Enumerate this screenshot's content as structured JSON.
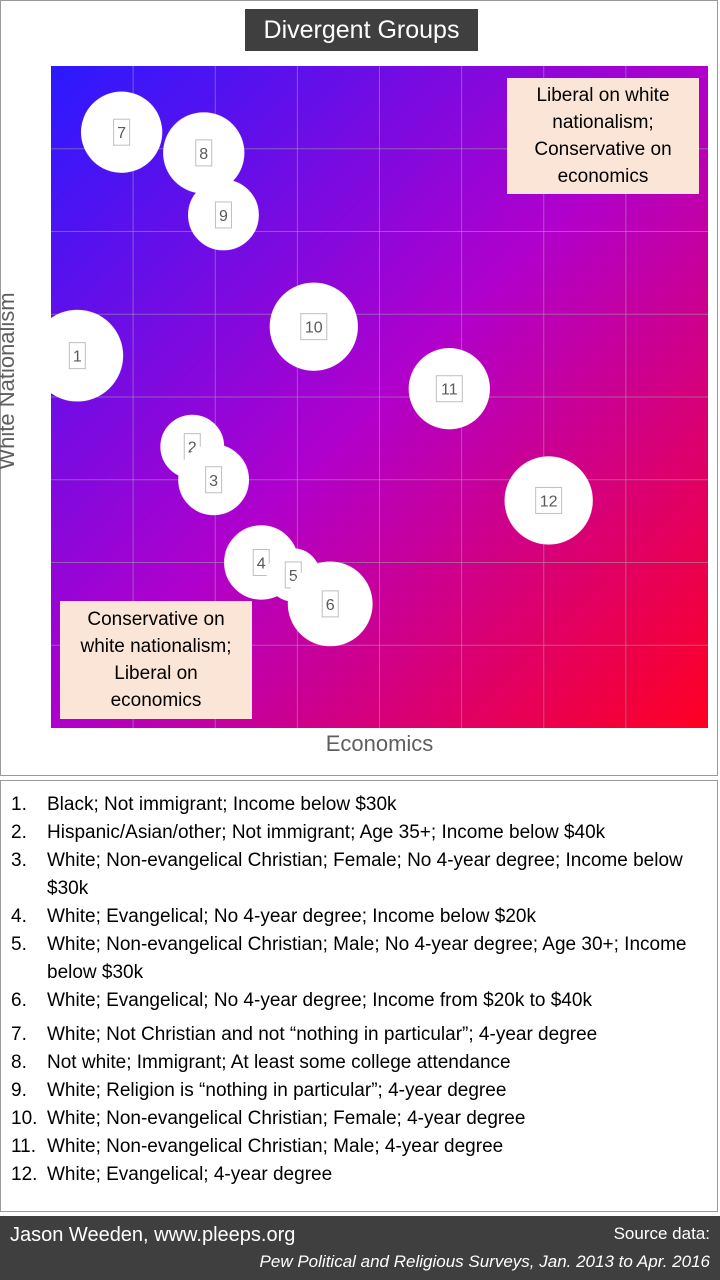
{
  "chart_data": {
    "type": "scatter",
    "title": "Divergent Groups",
    "xlabel": "Economics",
    "ylabel": "White Nationalism",
    "xlim": [
      0,
      8
    ],
    "ylim": [
      0,
      8
    ],
    "grid": true,
    "gradient_colors": {
      "top_left": "#2a1aff",
      "bottom_right": "#ff0022",
      "middle": "#b000cc"
    },
    "points": [
      {
        "label": "1",
        "x": 0.32,
        "y": 4.5,
        "size": 1.3
      },
      {
        "label": "2",
        "x": 1.72,
        "y": 3.4,
        "size": 0.9
      },
      {
        "label": "3",
        "x": 1.98,
        "y": 3.0,
        "size": 1.0
      },
      {
        "label": "4",
        "x": 2.56,
        "y": 2.0,
        "size": 1.05
      },
      {
        "label": "5",
        "x": 2.95,
        "y": 1.85,
        "size": 0.75
      },
      {
        "label": "6",
        "x": 3.4,
        "y": 1.5,
        "size": 1.2
      },
      {
        "label": "7",
        "x": 0.86,
        "y": 7.2,
        "size": 1.15
      },
      {
        "label": "8",
        "x": 1.86,
        "y": 6.95,
        "size": 1.15
      },
      {
        "label": "9",
        "x": 2.1,
        "y": 6.2,
        "size": 1.0
      },
      {
        "label": "10",
        "x": 3.2,
        "y": 4.85,
        "size": 1.25
      },
      {
        "label": "11",
        "x": 4.85,
        "y": 4.1,
        "size": 1.15
      },
      {
        "label": "12",
        "x": 6.06,
        "y": 2.75,
        "size": 1.25
      }
    ],
    "annotations": {
      "top_right": "Liberal on white\nnationalism;\nConservative on\neconomics",
      "bottom_left": "Conservative on\nwhite nationalism;\nLiberal on\neconomics"
    }
  },
  "legend": {
    "group_a": [
      {
        "num": "1.",
        "text": "Black; Not immigrant; Income below $30k"
      },
      {
        "num": "2.",
        "text": "Hispanic/Asian/other;  Not immigrant; Age 35+; Income below $40k"
      },
      {
        "num": "3.",
        "text": "White; Non-evangelical  Christian; Female; No 4-year degree; Income below $30k"
      },
      {
        "num": "4.",
        "text": "White; Evangelical;  No 4-year degree; Income below $20k"
      },
      {
        "num": "5.",
        "text": "White; Non-evangelical  Christian; Male; No 4-year degree; Age 30+; Income below $30k"
      },
      {
        "num": "6.",
        "text": "White; Evangelical;  No 4-year degree; Income from $20k to $40k"
      }
    ],
    "group_b": [
      {
        "num": "7.",
        "text": "White; Not Christian and not “nothing in particular”; 4-year degree"
      },
      {
        "num": "8.",
        "text": "Not white; Immigrant; At least some college attendance"
      },
      {
        "num": "9.",
        "text": "White; Religion is “nothing in particular”; 4-year degree"
      },
      {
        "num": "10.",
        "text": "White; Non-evangelical  Christian; Female; 4-year degree"
      },
      {
        "num": "11.",
        "text": "White; Non-evangelical  Christian; Male; 4-year degree"
      },
      {
        "num": "12.",
        "text": "White; Evangelical;  4-year degree"
      }
    ]
  },
  "footer": {
    "author": "Jason Weeden, www.pleeps.org",
    "source_label": "Source data:",
    "source": "Pew Political and Religious Surveys, Jan. 2013 to Apr. 2016"
  }
}
